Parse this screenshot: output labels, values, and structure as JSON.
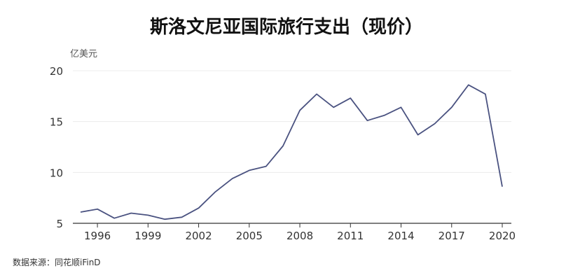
{
  "title": "斯洛文尼亚国际旅行支出（现价）",
  "source": "数据来源：同花顺iFinD",
  "chart_data": {
    "type": "line",
    "title": "斯洛文尼亚国际旅行支出（现价）",
    "ylabel": "亿美元",
    "xlabel": "",
    "ylim": [
      5,
      20
    ],
    "yticks": [
      5,
      10,
      15,
      20
    ],
    "xticks": [
      1996,
      1999,
      2002,
      2005,
      2008,
      2011,
      2014,
      2017,
      2020
    ],
    "grid": true,
    "colors": {
      "line": "#4a5280",
      "grid": "#ececec",
      "axis": "#333333"
    },
    "series": [
      {
        "x": [
          1995,
          1996,
          1997,
          1998,
          1999,
          2000,
          2001,
          2002,
          2003,
          2004,
          2005,
          2006,
          2007,
          2008,
          2009,
          2010,
          2011,
          2012,
          2013,
          2014,
          2015,
          2016,
          2017,
          2018,
          2019,
          2020
        ],
        "values": [
          6.1,
          6.4,
          5.5,
          6.0,
          5.8,
          5.4,
          5.6,
          6.5,
          8.1,
          9.4,
          10.2,
          10.6,
          12.6,
          16.1,
          17.7,
          16.4,
          17.3,
          15.1,
          15.6,
          16.4,
          13.7,
          14.8,
          16.4,
          18.6,
          17.7,
          8.6
        ]
      }
    ]
  }
}
